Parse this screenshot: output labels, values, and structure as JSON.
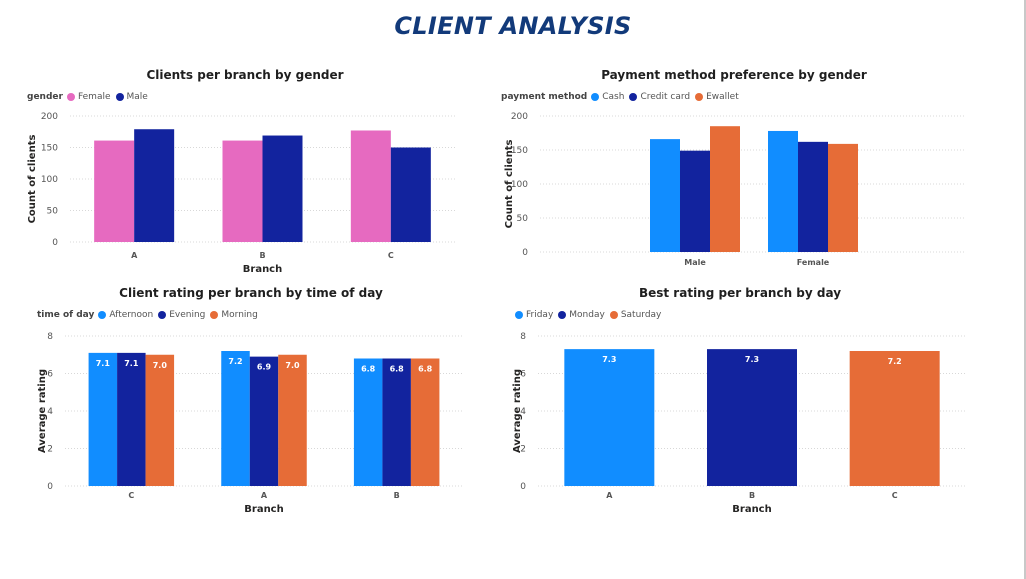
{
  "page": {
    "title": "CLIENT ANALYSIS"
  },
  "chart_data": [
    {
      "type": "bar",
      "title": "Clients per branch by gender",
      "legend_title": "gender",
      "legend_position": "top-left",
      "xlabel": "Branch",
      "ylabel": "Count of clients",
      "categories": [
        "A",
        "B",
        "C"
      ],
      "series": [
        {
          "name": "Female",
          "color": "#e66ac0",
          "values": [
            161,
            161,
            177
          ]
        },
        {
          "name": "Male",
          "color": "#12239e",
          "values": [
            179,
            169,
            150
          ]
        }
      ],
      "ylim": [
        0,
        200
      ],
      "yticks": [
        0,
        50,
        100,
        150,
        200
      ],
      "data_labels": false,
      "grid": true
    },
    {
      "type": "bar",
      "title": "Payment method preference by gender",
      "legend_title": "payment method",
      "legend_position": "top-left",
      "xlabel": "",
      "ylabel": "Count of clients",
      "categories": [
        "Male",
        "Female"
      ],
      "series": [
        {
          "name": "Cash",
          "color": "#118dff",
          "values": [
            166,
            178
          ]
        },
        {
          "name": "Credit card",
          "color": "#12239e",
          "values": [
            149,
            162
          ]
        },
        {
          "name": "Ewallet",
          "color": "#e66c37",
          "values": [
            185,
            159
          ]
        }
      ],
      "ylim": [
        0,
        200
      ],
      "yticks": [
        0,
        50,
        100,
        150,
        200
      ],
      "data_labels": false,
      "grid": true
    },
    {
      "type": "bar",
      "title": "Client rating per branch by time of day",
      "legend_title": "time of day",
      "legend_position": "top-left",
      "xlabel": "Branch",
      "ylabel": "Average rating",
      "categories": [
        "C",
        "A",
        "B"
      ],
      "series": [
        {
          "name": "Afternoon",
          "color": "#118dff",
          "values": [
            7.1,
            7.2,
            6.8
          ],
          "labels": [
            "7.1",
            "7.2",
            "6.8"
          ]
        },
        {
          "name": "Evening",
          "color": "#12239e",
          "values": [
            7.1,
            6.9,
            6.8
          ],
          "labels": [
            "7.1",
            "6.9",
            "6.8"
          ]
        },
        {
          "name": "Morning",
          "color": "#e66c37",
          "values": [
            7.0,
            7.0,
            6.8
          ],
          "labels": [
            "7.0",
            "7.0",
            "6.8"
          ]
        }
      ],
      "ylim": [
        0,
        8
      ],
      "yticks": [
        0,
        2,
        4,
        6,
        8
      ],
      "data_labels": true,
      "grid": true
    },
    {
      "type": "bar",
      "title": "Best rating per branch by day",
      "legend_title": "",
      "legend_position": "top-left",
      "xlabel": "Branch",
      "ylabel": "Average rating",
      "categories": [
        "A",
        "B",
        "C"
      ],
      "layout": "stacked",
      "series": [
        {
          "name": "Friday",
          "color": "#118dff",
          "values": [
            7.3,
            null,
            null
          ],
          "labels": [
            "7.3",
            "",
            ""
          ]
        },
        {
          "name": "Monday",
          "color": "#12239e",
          "values": [
            null,
            7.3,
            null
          ],
          "labels": [
            "",
            "7.3",
            ""
          ]
        },
        {
          "name": "Saturday",
          "color": "#e66c37",
          "values": [
            null,
            null,
            7.2
          ],
          "labels": [
            "",
            "",
            "7.2"
          ]
        }
      ],
      "ylim": [
        0,
        8
      ],
      "yticks": [
        0,
        2,
        4,
        6,
        8
      ],
      "data_labels": true,
      "grid": true
    }
  ]
}
